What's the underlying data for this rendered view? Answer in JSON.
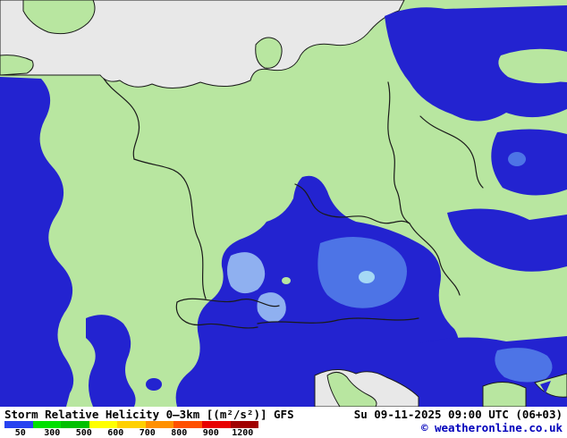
{
  "title": "Storm Relative Helicity 0—3km [(m²/s²)] GFS",
  "timestamp": "Su 09-11-2025 09:00 UTC (06+03)",
  "copyright": "© weatheronline.co.uk",
  "legend": {
    "values": [
      "50",
      "300",
      "500",
      "600",
      "700",
      "800",
      "900",
      "1200"
    ],
    "segment_colors": [
      "#2742f0",
      "#00e000",
      "#00c000",
      "#ffff00",
      "#ffd000",
      "#ff9000",
      "#ff5000",
      "#e80000",
      "#a00000"
    ]
  },
  "map": {
    "model": "GFS",
    "colors": {
      "land": "#b8e6a0",
      "sea": "#e8e8e8",
      "border": "#1a1a1a",
      "helicity_high": "#2323d0",
      "helicity_medium": "#4d74e6",
      "helicity_light": "#8fb0f0",
      "helicity_lightest": "#a5d8f5"
    }
  }
}
